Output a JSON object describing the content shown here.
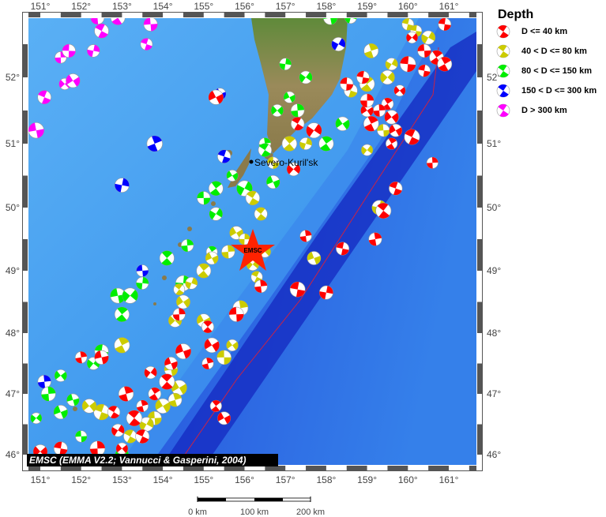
{
  "map": {
    "lon_ticks": [
      "151°",
      "152°",
      "153°",
      "154°",
      "155°",
      "156°",
      "157°",
      "158°",
      "159°",
      "160°",
      "161°"
    ],
    "lat_ticks": [
      "52°",
      "51°",
      "50°",
      "49°",
      "48°",
      "47°",
      "46°"
    ],
    "lon_values": [
      151,
      152,
      153,
      154,
      155,
      156,
      157,
      158,
      159,
      160,
      161
    ],
    "lat_values": [
      52,
      51,
      50,
      49,
      48,
      47,
      46
    ],
    "city_label": "Severo-Kuril'sk",
    "epicenter_label": "EMSC",
    "attribution": "EMSC (EMMA V2.2; Vannucci & Gasperini, 2004)",
    "colors": {
      "ocean": "#4aa3f0",
      "deep": "#1a3fd8",
      "land": "#7a8f4a",
      "plate_boundary": "#cc2244"
    },
    "events": [
      [
        151.1,
        51.7,
        4
      ],
      [
        151.5,
        52.3,
        4
      ],
      [
        151.7,
        52.4,
        4
      ],
      [
        151.6,
        51.9,
        4
      ],
      [
        151.8,
        51.95,
        4
      ],
      [
        152.3,
        52.4,
        4
      ],
      [
        152.5,
        52.7,
        4
      ],
      [
        152.4,
        52.9,
        4
      ],
      [
        152.9,
        52.9,
        4
      ],
      [
        153.7,
        52.8,
        4
      ],
      [
        153.6,
        52.5,
        4
      ],
      [
        150.9,
        51.2,
        4
      ],
      [
        155.4,
        51.75,
        3
      ],
      [
        153.8,
        51.0,
        3
      ],
      [
        155.5,
        50.8,
        3
      ],
      [
        153.0,
        50.35,
        3
      ],
      [
        153.5,
        49.0,
        3
      ],
      [
        151.1,
        47.2,
        3
      ],
      [
        158.3,
        52.5,
        3
      ],
      [
        157.0,
        52.2,
        2
      ],
      [
        157.5,
        52.0,
        2
      ],
      [
        157.1,
        51.7,
        2
      ],
      [
        156.8,
        51.5,
        2
      ],
      [
        157.3,
        51.5,
        2
      ],
      [
        158.4,
        51.3,
        2
      ],
      [
        158.0,
        51.0,
        2
      ],
      [
        156.5,
        51.0,
        2
      ],
      [
        156.5,
        50.9,
        2
      ],
      [
        155.7,
        50.5,
        2
      ],
      [
        155.3,
        50.3,
        2
      ],
      [
        156.0,
        50.3,
        2
      ],
      [
        155.0,
        50.15,
        2
      ],
      [
        155.3,
        49.9,
        2
      ],
      [
        156.7,
        50.4,
        2
      ],
      [
        154.6,
        49.4,
        2
      ],
      [
        154.1,
        49.2,
        2
      ],
      [
        153.5,
        48.8,
        2
      ],
      [
        152.9,
        48.6,
        2
      ],
      [
        153.2,
        48.6,
        2
      ],
      [
        153.0,
        48.3,
        2
      ],
      [
        152.5,
        47.7,
        2
      ],
      [
        152.3,
        47.5,
        2
      ],
      [
        151.5,
        47.3,
        2
      ],
      [
        151.2,
        47.0,
        2
      ],
      [
        151.8,
        46.9,
        2
      ],
      [
        150.9,
        46.6,
        2
      ],
      [
        151.5,
        46.7,
        2
      ],
      [
        152.0,
        46.3,
        2
      ],
      [
        153.0,
        46.0,
        2
      ],
      [
        158.1,
        52.9,
        2
      ],
      [
        158.6,
        52.9,
        2
      ],
      [
        154.5,
        48.8,
        2
      ],
      [
        155.2,
        49.3,
        2
      ],
      [
        159.1,
        52.4,
        1
      ],
      [
        159.5,
        52.0,
        1
      ],
      [
        159.6,
        52.2,
        1
      ],
      [
        160.0,
        52.8,
        1
      ],
      [
        160.2,
        52.7,
        1
      ],
      [
        160.5,
        52.6,
        1
      ],
      [
        159.0,
        51.9,
        1
      ],
      [
        158.6,
        51.8,
        1
      ],
      [
        159.4,
        51.2,
        1
      ],
      [
        159.0,
        50.9,
        1
      ],
      [
        157.5,
        51.0,
        1
      ],
      [
        157.1,
        51.0,
        1
      ],
      [
        156.7,
        50.7,
        1
      ],
      [
        156.2,
        50.15,
        1
      ],
      [
        156.4,
        49.9,
        1
      ],
      [
        155.8,
        49.6,
        1
      ],
      [
        156.0,
        49.5,
        1
      ],
      [
        155.6,
        49.3,
        1
      ],
      [
        155.2,
        49.2,
        1
      ],
      [
        155.0,
        49.0,
        1
      ],
      [
        156.2,
        49.1,
        1
      ],
      [
        156.5,
        49.3,
        1
      ],
      [
        156.3,
        48.9,
        1
      ],
      [
        154.7,
        48.8,
        1
      ],
      [
        154.4,
        48.7,
        1
      ],
      [
        154.3,
        48.2,
        1
      ],
      [
        154.5,
        48.5,
        1
      ],
      [
        155.0,
        48.2,
        1
      ],
      [
        155.7,
        47.8,
        1
      ],
      [
        155.5,
        47.6,
        1
      ],
      [
        153.0,
        47.8,
        1
      ],
      [
        154.2,
        47.4,
        1
      ],
      [
        154.4,
        47.1,
        1
      ],
      [
        154.3,
        46.9,
        1
      ],
      [
        154.0,
        46.8,
        1
      ],
      [
        153.8,
        46.6,
        1
      ],
      [
        153.6,
        46.5,
        1
      ],
      [
        153.2,
        46.3,
        1
      ],
      [
        152.5,
        46.7,
        1
      ],
      [
        152.2,
        46.8,
        1
      ],
      [
        159.3,
        50.0,
        1
      ],
      [
        157.7,
        49.2,
        1
      ],
      [
        155.9,
        48.4,
        1
      ],
      [
        160.1,
        52.6,
        0
      ],
      [
        160.4,
        52.4,
        0
      ],
      [
        160.7,
        52.3,
        0
      ],
      [
        160.9,
        52.2,
        0
      ],
      [
        160.4,
        52.1,
        0
      ],
      [
        160.9,
        52.8,
        0
      ],
      [
        160.0,
        52.2,
        0
      ],
      [
        159.8,
        51.8,
        0
      ],
      [
        159.5,
        51.6,
        0
      ],
      [
        159.3,
        51.5,
        0
      ],
      [
        159.0,
        51.5,
        0
      ],
      [
        159.6,
        51.4,
        0
      ],
      [
        159.1,
        51.3,
        0
      ],
      [
        159.7,
        51.2,
        0
      ],
      [
        160.1,
        51.1,
        0
      ],
      [
        159.6,
        51.0,
        0
      ],
      [
        159.0,
        51.65,
        0
      ],
      [
        158.5,
        51.9,
        0
      ],
      [
        158.9,
        52.0,
        0
      ],
      [
        160.6,
        50.7,
        0
      ],
      [
        159.7,
        50.3,
        0
      ],
      [
        159.4,
        49.95,
        0
      ],
      [
        159.2,
        49.5,
        0
      ],
      [
        158.4,
        49.35,
        0
      ],
      [
        157.5,
        49.55,
        0
      ],
      [
        157.3,
        48.7,
        0
      ],
      [
        158.0,
        48.65,
        0
      ],
      [
        156.4,
        48.75,
        0
      ],
      [
        155.8,
        48.3,
        0
      ],
      [
        155.1,
        48.1,
        0
      ],
      [
        154.5,
        47.7,
        0
      ],
      [
        154.2,
        47.5,
        0
      ],
      [
        155.2,
        47.8,
        0
      ],
      [
        155.1,
        47.5,
        0
      ],
      [
        152.0,
        47.6,
        0
      ],
      [
        152.5,
        47.6,
        0
      ],
      [
        153.7,
        47.35,
        0
      ],
      [
        153.8,
        47.0,
        0
      ],
      [
        154.1,
        47.2,
        0
      ],
      [
        153.1,
        47.0,
        0
      ],
      [
        152.8,
        46.7,
        0
      ],
      [
        153.5,
        46.8,
        0
      ],
      [
        153.3,
        46.6,
        0
      ],
      [
        152.9,
        46.4,
        0
      ],
      [
        153.5,
        46.3,
        0
      ],
      [
        153.0,
        46.1,
        0
      ],
      [
        152.4,
        46.1,
        0
      ],
      [
        151.5,
        46.1,
        0
      ],
      [
        151.0,
        46.05,
        0
      ],
      [
        155.3,
        46.8,
        0
      ],
      [
        155.5,
        46.6,
        0
      ],
      [
        155.3,
        51.7,
        0
      ],
      [
        157.2,
        50.6,
        0
      ],
      [
        157.3,
        51.3,
        0
      ],
      [
        157.7,
        51.2,
        0
      ],
      [
        154.4,
        48.3,
        0
      ]
    ]
  },
  "legend": {
    "title": "Depth",
    "items": [
      {
        "label": "D <= 40 km",
        "color": "#ff0000"
      },
      {
        "label": "40 < D <= 80 km",
        "color": "#cccc00"
      },
      {
        "label": "80 < D <= 150 km",
        "color": "#00ee00"
      },
      {
        "label": "150 < D <= 300 km",
        "color": "#0000ff"
      },
      {
        "label": "D > 300 km",
        "color": "#ff00ff"
      }
    ]
  },
  "scale_bar": {
    "labels": [
      "0 km",
      "100 km",
      "200 km"
    ]
  }
}
